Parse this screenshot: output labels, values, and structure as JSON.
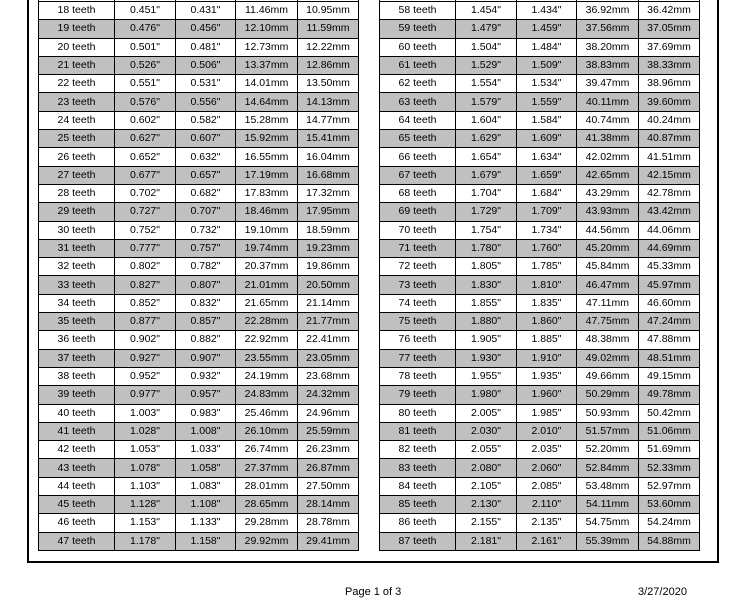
{
  "left_rows": [
    [
      "18 teeth",
      "0.451\"",
      "0.431\"",
      "11.46mm",
      "10.95mm"
    ],
    [
      "19 teeth",
      "0.476\"",
      "0.456\"",
      "12.10mm",
      "11.59mm"
    ],
    [
      "20 teeth",
      "0.501\"",
      "0.481\"",
      "12.73mm",
      "12.22mm"
    ],
    [
      "21 teeth",
      "0.526\"",
      "0.506\"",
      "13.37mm",
      "12.86mm"
    ],
    [
      "22 teeth",
      "0.551\"",
      "0.531\"",
      "14.01mm",
      "13.50mm"
    ],
    [
      "23 teeth",
      "0.576\"",
      "0.556\"",
      "14.64mm",
      "14.13mm"
    ],
    [
      "24 teeth",
      "0.602\"",
      "0.582\"",
      "15.28mm",
      "14.77mm"
    ],
    [
      "25 teeth",
      "0.627\"",
      "0.607\"",
      "15.92mm",
      "15.41mm"
    ],
    [
      "26 teeth",
      "0.652\"",
      "0.632\"",
      "16.55mm",
      "16.04mm"
    ],
    [
      "27 teeth",
      "0.677\"",
      "0.657\"",
      "17.19mm",
      "16.68mm"
    ],
    [
      "28 teeth",
      "0.702\"",
      "0.682\"",
      "17.83mm",
      "17.32mm"
    ],
    [
      "29 teeth",
      "0.727\"",
      "0.707\"",
      "18.46mm",
      "17.95mm"
    ],
    [
      "30 teeth",
      "0.752\"",
      "0.732\"",
      "19.10mm",
      "18.59mm"
    ],
    [
      "31 teeth",
      "0.777\"",
      "0.757\"",
      "19.74mm",
      "19.23mm"
    ],
    [
      "32 teeth",
      "0.802\"",
      "0.782\"",
      "20.37mm",
      "19.86mm"
    ],
    [
      "33 teeth",
      "0.827\"",
      "0.807\"",
      "21.01mm",
      "20.50mm"
    ],
    [
      "34 teeth",
      "0.852\"",
      "0.832\"",
      "21.65mm",
      "21.14mm"
    ],
    [
      "35 teeth",
      "0.877\"",
      "0.857\"",
      "22.28mm",
      "21.77mm"
    ],
    [
      "36 teeth",
      "0.902\"",
      "0.882\"",
      "22.92mm",
      "22.41mm"
    ],
    [
      "37 teeth",
      "0.927\"",
      "0.907\"",
      "23.55mm",
      "23.05mm"
    ],
    [
      "38 teeth",
      "0.952\"",
      "0.932\"",
      "24.19mm",
      "23.68mm"
    ],
    [
      "39 teeth",
      "0.977\"",
      "0.957\"",
      "24.83mm",
      "24.32mm"
    ],
    [
      "40 teeth",
      "1.003\"",
      "0.983\"",
      "25.46mm",
      "24.96mm"
    ],
    [
      "41 teeth",
      "1.028\"",
      "1.008\"",
      "26.10mm",
      "25.59mm"
    ],
    [
      "42 teeth",
      "1.053\"",
      "1.033\"",
      "26.74mm",
      "26.23mm"
    ],
    [
      "43 teeth",
      "1.078\"",
      "1.058\"",
      "27.37mm",
      "26.87mm"
    ],
    [
      "44 teeth",
      "1.103\"",
      "1.083\"",
      "28.01mm",
      "27.50mm"
    ],
    [
      "45 teeth",
      "1.128\"",
      "1.108\"",
      "28.65mm",
      "28.14mm"
    ],
    [
      "46 teeth",
      "1.153\"",
      "1.133\"",
      "29.28mm",
      "28.78mm"
    ],
    [
      "47 teeth",
      "1.178\"",
      "1.158\"",
      "29.92mm",
      "29.41mm"
    ]
  ],
  "right_rows": [
    [
      "58 teeth",
      "1.454\"",
      "1.434\"",
      "36.92mm",
      "36.42mm"
    ],
    [
      "59 teeth",
      "1.479\"",
      "1.459\"",
      "37.56mm",
      "37.05mm"
    ],
    [
      "60 teeth",
      "1.504\"",
      "1.484\"",
      "38.20mm",
      "37.69mm"
    ],
    [
      "61 teeth",
      "1.529\"",
      "1.509\"",
      "38.83mm",
      "38.33mm"
    ],
    [
      "62 teeth",
      "1.554\"",
      "1.534\"",
      "39.47mm",
      "38.96mm"
    ],
    [
      "63 teeth",
      "1.579\"",
      "1.559\"",
      "40.11mm",
      "39.60mm"
    ],
    [
      "64 teeth",
      "1.604\"",
      "1.584\"",
      "40.74mm",
      "40.24mm"
    ],
    [
      "65 teeth",
      "1.629\"",
      "1.609\"",
      "41.38mm",
      "40.87mm"
    ],
    [
      "66 teeth",
      "1.654\"",
      "1.634\"",
      "42.02mm",
      "41.51mm"
    ],
    [
      "67 teeth",
      "1.679\"",
      "1.659\"",
      "42.65mm",
      "42.15mm"
    ],
    [
      "68 teeth",
      "1.704\"",
      "1.684\"",
      "43.29mm",
      "42.78mm"
    ],
    [
      "69 teeth",
      "1.729\"",
      "1.709\"",
      "43.93mm",
      "43.42mm"
    ],
    [
      "70 teeth",
      "1.754\"",
      "1.734\"",
      "44.56mm",
      "44.06mm"
    ],
    [
      "71 teeth",
      "1.780\"",
      "1.760\"",
      "45.20mm",
      "44.69mm"
    ],
    [
      "72 teeth",
      "1.805\"",
      "1.785\"",
      "45.84mm",
      "45.33mm"
    ],
    [
      "73 teeth",
      "1.830\"",
      "1.810\"",
      "46.47mm",
      "45.97mm"
    ],
    [
      "74 teeth",
      "1.855\"",
      "1.835\"",
      "47.11mm",
      "46.60mm"
    ],
    [
      "75 teeth",
      "1.880\"",
      "1.860\"",
      "47.75mm",
      "47.24mm"
    ],
    [
      "76 teeth",
      "1.905\"",
      "1.885\"",
      "48.38mm",
      "47.88mm"
    ],
    [
      "77 teeth",
      "1.930\"",
      "1.910\"",
      "49.02mm",
      "48.51mm"
    ],
    [
      "78 teeth",
      "1.955\"",
      "1.935\"",
      "49.66mm",
      "49.15mm"
    ],
    [
      "79 teeth",
      "1.980\"",
      "1.960\"",
      "50.29mm",
      "49.78mm"
    ],
    [
      "80 teeth",
      "2.005\"",
      "1.985\"",
      "50.93mm",
      "50.42mm"
    ],
    [
      "81 teeth",
      "2.030\"",
      "2.010\"",
      "51.57mm",
      "51.06mm"
    ],
    [
      "82 teeth",
      "2.055\"",
      "2.035\"",
      "52.20mm",
      "51.69mm"
    ],
    [
      "83 teeth",
      "2.080\"",
      "2.060\"",
      "52.84mm",
      "52.33mm"
    ],
    [
      "84 teeth",
      "2.105\"",
      "2.085\"",
      "53.48mm",
      "52.97mm"
    ],
    [
      "85 teeth",
      "2.130\"",
      "2.110\"",
      "54.11mm",
      "53.60mm"
    ],
    [
      "86 teeth",
      "2.155\"",
      "2.135\"",
      "54.75mm",
      "54.24mm"
    ],
    [
      "87 teeth",
      "2.181\"",
      "2.161\"",
      "55.39mm",
      "54.88mm"
    ]
  ],
  "shade_color": "#c0c0c0",
  "footer": {
    "page": "Page 1 of 3",
    "date": "3/27/2020"
  }
}
